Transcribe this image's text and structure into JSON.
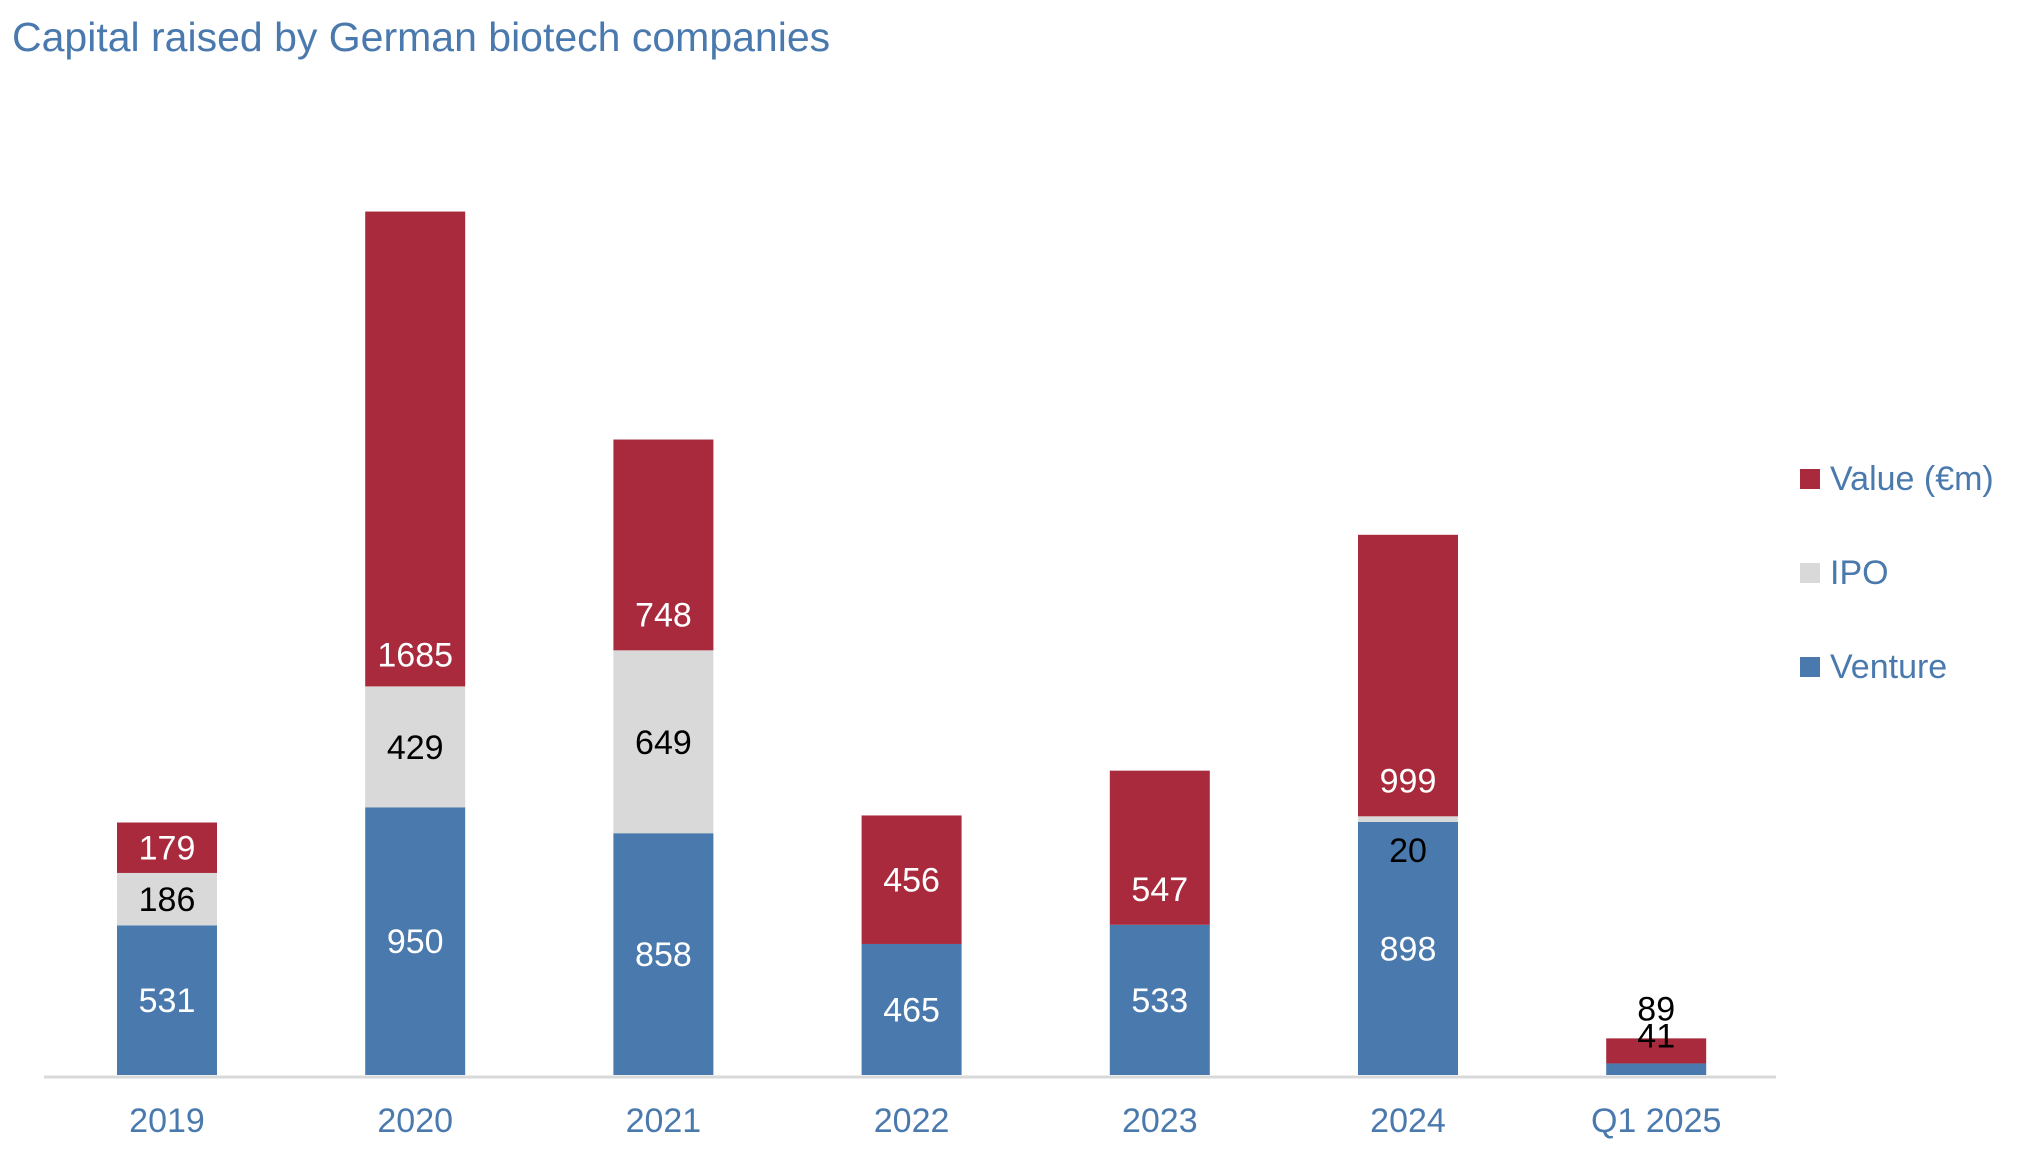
{
  "title": "Capital raised by German biotech companies",
  "colors": {
    "venture": "#4a79ad",
    "ipo": "#d9d9d9",
    "value": "#a82a3c",
    "axis_text": "#4a79ad",
    "axis_line": "#d9d9d9"
  },
  "legend": [
    {
      "label": "Value (€m)",
      "color": "#a82a3c"
    },
    {
      "label": "IPO",
      "color": "#d9d9d9"
    },
    {
      "label": "Venture",
      "color": "#4a79ad"
    }
  ],
  "chart_data": {
    "type": "bar",
    "stacked": true,
    "title": "Capital raised by German biotech companies",
    "categories": [
      "2019",
      "2020",
      "2021",
      "2022",
      "2023",
      "2024",
      "Q1 2025"
    ],
    "series": [
      {
        "name": "Venture",
        "color": "#4a79ad",
        "values": [
          531,
          950,
          858,
          465,
          533,
          898,
          41
        ],
        "label_color": [
          "#ffffff",
          "#ffffff",
          "#ffffff",
          "#ffffff",
          "#ffffff",
          "#ffffff",
          "#000000"
        ]
      },
      {
        "name": "IPO",
        "color": "#d9d9d9",
        "values": [
          186,
          429,
          649,
          0,
          0,
          20,
          0
        ],
        "label_color": [
          "#000000",
          "#000000",
          "#000000",
          "#000000",
          "#000000",
          "#000000",
          "#000000"
        ]
      },
      {
        "name": "Value (€m)",
        "color": "#a82a3c",
        "values": [
          179,
          1685,
          748,
          456,
          547,
          999,
          89
        ],
        "label_color": [
          "#ffffff",
          "#ffffff",
          "#ffffff",
          "#ffffff",
          "#ffffff",
          "#ffffff",
          "#000000"
        ]
      }
    ],
    "legend_position": "right",
    "grid": false
  }
}
